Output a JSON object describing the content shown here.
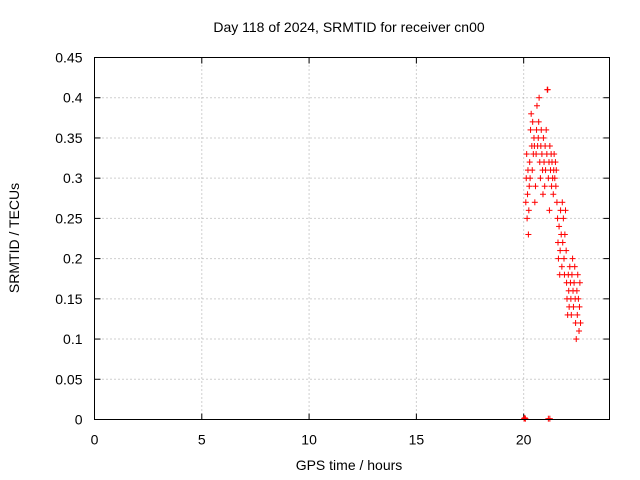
{
  "chart_data": {
    "type": "scatter",
    "title": "Day 118 of 2024, SRMTID for receiver cn00",
    "xlabel": "GPS time / hours",
    "ylabel": "SRMTID / TECUs",
    "xlim": [
      0,
      24
    ],
    "ylim": [
      0,
      0.45
    ],
    "xticks": [
      "0",
      "5",
      "10",
      "15",
      "20"
    ],
    "yticks": [
      "0",
      "0.05",
      "0.1",
      "0.15",
      "0.2",
      "0.25",
      "0.3",
      "0.35",
      "0.4",
      "0.45"
    ],
    "grid": true,
    "marker": "plus",
    "color": "#ff0000",
    "series": [
      {
        "points": [
          [
            20.02,
            0.001
          ],
          [
            20.05,
            0.002
          ],
          [
            20.08,
            0.001
          ],
          [
            21.15,
            0.001
          ],
          [
            21.22,
            0.001
          ],
          [
            20.1,
            0.27
          ],
          [
            20.12,
            0.3
          ],
          [
            20.14,
            0.33
          ],
          [
            20.16,
            0.25
          ],
          [
            20.18,
            0.28
          ],
          [
            20.2,
            0.31
          ],
          [
            20.22,
            0.23
          ],
          [
            20.24,
            0.26
          ],
          [
            20.26,
            0.29
          ],
          [
            20.28,
            0.32
          ],
          [
            20.3,
            0.3
          ],
          [
            20.32,
            0.36
          ],
          [
            20.35,
            0.38
          ],
          [
            20.38,
            0.34
          ],
          [
            20.4,
            0.31
          ],
          [
            20.42,
            0.37
          ],
          [
            20.45,
            0.33
          ],
          [
            20.48,
            0.35
          ],
          [
            20.5,
            0.34
          ],
          [
            20.52,
            0.27
          ],
          [
            20.55,
            0.29
          ],
          [
            20.58,
            0.33
          ],
          [
            20.6,
            0.36
          ],
          [
            20.62,
            0.39
          ],
          [
            20.65,
            0.34
          ],
          [
            20.68,
            0.35
          ],
          [
            20.7,
            0.37
          ],
          [
            20.72,
            0.4
          ],
          [
            20.75,
            0.32
          ],
          [
            20.78,
            0.3
          ],
          [
            20.8,
            0.34
          ],
          [
            20.82,
            0.36
          ],
          [
            20.85,
            0.33
          ],
          [
            20.88,
            0.31
          ],
          [
            20.9,
            0.28
          ],
          [
            20.92,
            0.35
          ],
          [
            20.95,
            0.32
          ],
          [
            20.98,
            0.29
          ],
          [
            21.0,
            0.34
          ],
          [
            21.02,
            0.31
          ],
          [
            21.05,
            0.36
          ],
          [
            21.08,
            0.33
          ],
          [
            21.1,
            0.41
          ],
          [
            21.12,
            0.41
          ],
          [
            21.15,
            0.3
          ],
          [
            21.18,
            0.32
          ],
          [
            21.2,
            0.26
          ],
          [
            21.22,
            0.34
          ],
          [
            21.25,
            0.31
          ],
          [
            21.28,
            0.33
          ],
          [
            21.3,
            0.29
          ],
          [
            21.32,
            0.32
          ],
          [
            21.35,
            0.3
          ],
          [
            21.38,
            0.28
          ],
          [
            21.4,
            0.31
          ],
          [
            21.42,
            0.33
          ],
          [
            21.45,
            0.3
          ],
          [
            21.48,
            0.32
          ],
          [
            21.5,
            0.29
          ],
          [
            21.52,
            0.31
          ],
          [
            21.55,
            0.27
          ],
          [
            21.58,
            0.25
          ],
          [
            21.6,
            0.22
          ],
          [
            21.62,
            0.2
          ],
          [
            21.65,
            0.24
          ],
          [
            21.68,
            0.18
          ],
          [
            21.7,
            0.21
          ],
          [
            21.72,
            0.26
          ],
          [
            21.75,
            0.23
          ],
          [
            21.78,
            0.19
          ],
          [
            21.8,
            0.27
          ],
          [
            21.82,
            0.22
          ],
          [
            21.85,
            0.25
          ],
          [
            21.88,
            0.2
          ],
          [
            21.9,
            0.18
          ],
          [
            21.92,
            0.23
          ],
          [
            21.95,
            0.26
          ],
          [
            21.98,
            0.21
          ],
          [
            22.0,
            0.17
          ],
          [
            22.02,
            0.15
          ],
          [
            22.05,
            0.13
          ],
          [
            22.08,
            0.18
          ],
          [
            22.1,
            0.16
          ],
          [
            22.12,
            0.14
          ],
          [
            22.15,
            0.19
          ],
          [
            22.18,
            0.17
          ],
          [
            22.2,
            0.15
          ],
          [
            22.22,
            0.13
          ],
          [
            22.25,
            0.18
          ],
          [
            22.28,
            0.2
          ],
          [
            22.3,
            0.16
          ],
          [
            22.32,
            0.14
          ],
          [
            22.35,
            0.17
          ],
          [
            22.38,
            0.19
          ],
          [
            22.4,
            0.15
          ],
          [
            22.42,
            0.12
          ],
          [
            22.45,
            0.1
          ],
          [
            22.48,
            0.16
          ],
          [
            22.5,
            0.13
          ],
          [
            22.52,
            0.18
          ],
          [
            22.55,
            0.15
          ],
          [
            22.58,
            0.11
          ],
          [
            22.6,
            0.14
          ],
          [
            22.62,
            0.17
          ],
          [
            22.65,
            0.12
          ]
        ]
      }
    ]
  }
}
